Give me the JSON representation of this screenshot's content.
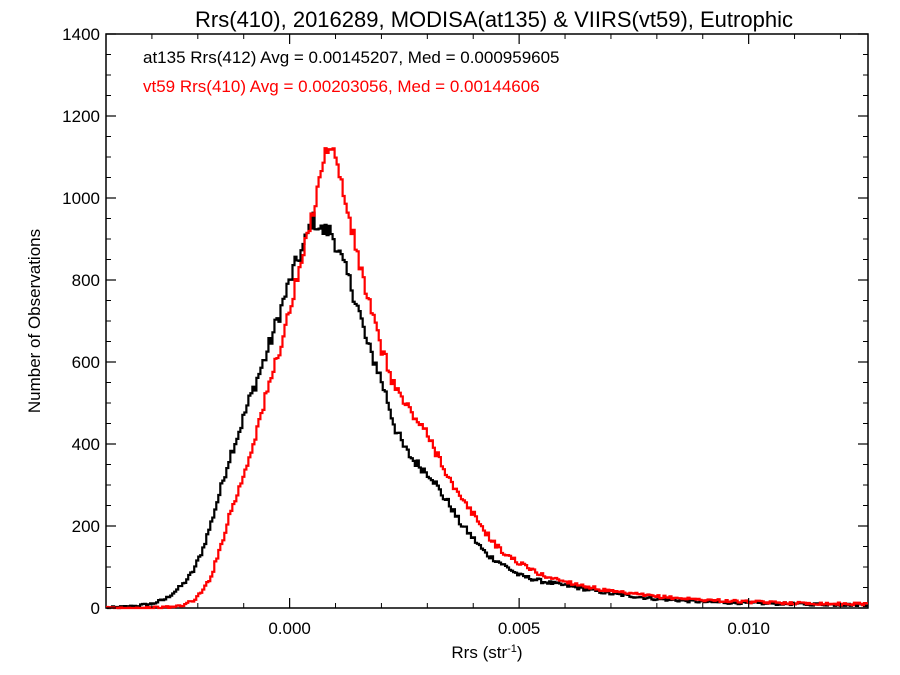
{
  "chart_data": {
    "type": "line",
    "title": "Rrs(410), 2016289, MODISA(at135) & VIIRS(vt59), Eutrophic",
    "xlabel": "Rrs (str",
    "xlabel_sup": "-1",
    "xlabel_end": ")",
    "ylabel": "Number of Observations",
    "xlim": [
      -0.004,
      0.0126
    ],
    "ylim": [
      0,
      1400
    ],
    "xticks": [
      0.0,
      0.005,
      0.01
    ],
    "xtick_labels": [
      "0.000",
      "0.005",
      "0.010"
    ],
    "yticks": [
      0,
      200,
      400,
      600,
      800,
      1000,
      1200,
      1400
    ],
    "ytick_labels": [
      "0",
      "200",
      "400",
      "600",
      "800",
      "1000",
      "1200",
      "1400"
    ],
    "grid": false,
    "step": true,
    "annotations": [
      {
        "text": "at135 Rrs(412) Avg = 0.00145207, Med = 0.000959605",
        "color": "#000000"
      },
      {
        "text": "vt59 Rrs(410) Avg = 0.00203056, Med = 0.00144606",
        "color": "#ff0000"
      }
    ],
    "series": [
      {
        "color": "#000000",
        "x": [
          -0.004,
          -0.0035,
          -0.003,
          -0.0027,
          -0.0025,
          -0.0023,
          -0.0021,
          -0.0019,
          -0.0017,
          -0.0015,
          -0.0013,
          -0.0011,
          -0.0009,
          -0.0007,
          -0.0005,
          -0.0003,
          -0.0001,
          0.0001,
          0.0003,
          0.0005,
          0.0007,
          0.0009,
          0.0011,
          0.0013,
          0.0015,
          0.0017,
          0.0019,
          0.0021,
          0.0023,
          0.0025,
          0.0027,
          0.0029,
          0.0031,
          0.0033,
          0.0035,
          0.0037,
          0.004,
          0.0043,
          0.0046,
          0.005,
          0.0055,
          0.006,
          0.0065,
          0.007,
          0.008,
          0.009,
          0.01,
          0.011,
          0.012,
          0.0126
        ],
        "y": [
          0,
          3,
          10,
          22,
          40,
          60,
          90,
          140,
          210,
          290,
          370,
          430,
          500,
          560,
          620,
          690,
          760,
          830,
          880,
          950,
          920,
          920,
          860,
          800,
          730,
          640,
          590,
          520,
          440,
          390,
          360,
          340,
          320,
          280,
          250,
          210,
          170,
          130,
          110,
          80,
          65,
          55,
          45,
          35,
          22,
          15,
          12,
          10,
          8,
          8
        ]
      },
      {
        "color": "#ff0000",
        "x": [
          -0.004,
          -0.003,
          -0.0025,
          -0.0023,
          -0.0021,
          -0.0019,
          -0.0017,
          -0.0015,
          -0.0013,
          -0.0011,
          -0.0009,
          -0.0007,
          -0.0005,
          -0.0003,
          -0.0001,
          0.0001,
          0.0003,
          0.0005,
          0.0007,
          0.0009,
          0.0011,
          0.0013,
          0.0015,
          0.0017,
          0.0019,
          0.0021,
          0.0023,
          0.0025,
          0.0027,
          0.0029,
          0.0031,
          0.0033,
          0.0035,
          0.0037,
          0.004,
          0.0043,
          0.0046,
          0.005,
          0.0055,
          0.006,
          0.0065,
          0.007,
          0.008,
          0.009,
          0.01,
          0.011,
          0.012,
          0.0126
        ],
        "y": [
          0,
          0,
          3,
          8,
          18,
          40,
          80,
          150,
          230,
          290,
          360,
          440,
          520,
          600,
          680,
          770,
          860,
          960,
          1080,
          1140,
          1050,
          950,
          850,
          760,
          670,
          600,
          540,
          500,
          470,
          440,
          400,
          360,
          310,
          270,
          230,
          180,
          140,
          110,
          80,
          65,
          52,
          40,
          28,
          20,
          15,
          12,
          10,
          10
        ]
      }
    ]
  }
}
